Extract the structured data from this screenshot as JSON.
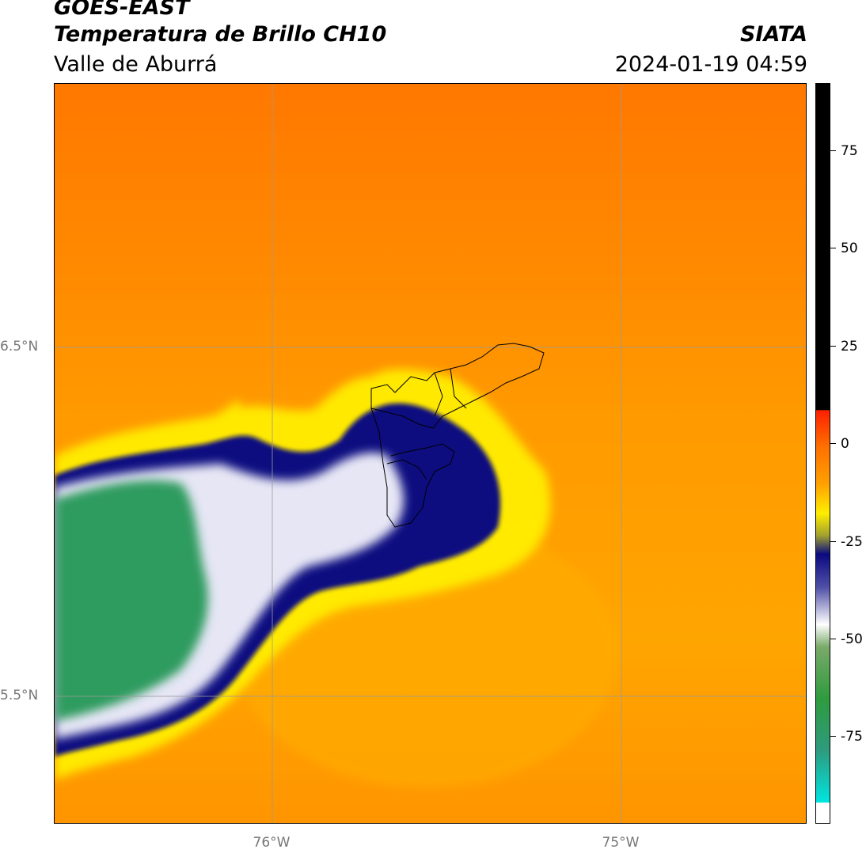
{
  "header": {
    "satellite": "GOES-EAST",
    "product": "Temperatura de Brillo CH10",
    "region": "Valle de Aburrá",
    "org": "SIATA",
    "datetime": "2024-01-19 04:59"
  },
  "map": {
    "lat_labels": [
      "6.5°N",
      "5.5°N"
    ],
    "lon_labels": [
      "76°W",
      "75°W"
    ]
  },
  "colorbar": {
    "ticks": [
      "75",
      "50",
      "25",
      "0",
      "-25",
      "-50",
      "-75"
    ]
  },
  "colors": {
    "orange_dark": "#ff7800",
    "orange": "#ff9a00",
    "yellow": "#ffee00",
    "navy": "#0a0a80",
    "white": "#ffffff",
    "green": "#2e9b5e",
    "red": "#ff2000",
    "black": "#000000",
    "cyan": "#00e5e0"
  }
}
